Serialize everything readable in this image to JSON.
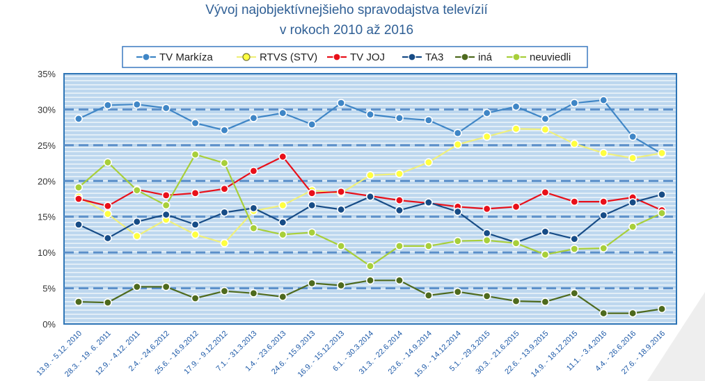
{
  "chart_data": {
    "type": "line",
    "title_line1": "Vývoj najobjektívnejšieho spravodajstva televízií",
    "title_line2": "v rokoch 2010 až 2016",
    "categories": [
      "13.9. - 5.12. 2010",
      "28.3. - 19. 6. 2011",
      "12.9. - 4.12. 2011",
      "2.4. - 24.6.2012",
      "25.6. - 16.9.2012",
      "17.9. - 9.12.2012",
      "7.1. - 31.3.2013",
      "1.4. - 23.6.2013",
      "24.6. - 15.9.2013",
      "16.9. - 15.12.2013",
      "6.1. - 30.3.2014",
      "31.3. - 22.6.2014",
      "23.6. - 14.9.2014",
      "15.9. - 14.12.2014",
      "5.1. - 29.3.2015",
      "30.3. - 21.6.2015",
      "22.6. - 13.9.2015",
      "14.9. - 18.12.2015",
      "11.1. - 3.4.2016",
      "4.4. - 26.6.2016",
      "27.6. - 18.9.2016"
    ],
    "y_ticks": [
      "0%",
      "5%",
      "10%",
      "15%",
      "20%",
      "25%",
      "30%",
      "35%"
    ],
    "ylim": [
      0,
      35
    ],
    "grid": true,
    "legend_position": "top",
    "series": [
      {
        "name": "TV Markíza",
        "color": "#3f86c6",
        "marker_fill": "#3f86c6",
        "values": [
          28.7,
          30.6,
          30.7,
          30.2,
          28.1,
          27.1,
          28.8,
          29.5,
          27.9,
          30.9,
          29.3,
          28.8,
          28.5,
          26.7,
          29.5,
          30.4,
          28.7,
          30.9,
          31.3,
          26.2,
          23.8
        ]
      },
      {
        "name": "RTVS (STV)",
        "color": "#f0f07a",
        "marker_fill": "#ffff40",
        "values": [
          17.8,
          15.4,
          12.3,
          14.6,
          12.5,
          11.3,
          15.8,
          16.6,
          18.7,
          18.3,
          20.8,
          21.0,
          22.6,
          25.1,
          26.2,
          27.3,
          27.2,
          25.2,
          23.9,
          23.2,
          23.9
        ]
      },
      {
        "name": "TV JOJ",
        "color": "#e8101a",
        "marker_fill": "#e8101a",
        "values": [
          17.5,
          16.5,
          18.8,
          18.0,
          18.3,
          18.9,
          21.4,
          23.4,
          18.3,
          18.5,
          17.9,
          17.3,
          16.9,
          16.4,
          16.1,
          16.4,
          18.4,
          17.1,
          17.1,
          17.7,
          15.9
        ]
      },
      {
        "name": "TA3",
        "color": "#174c86",
        "marker_fill": "#174c86",
        "values": [
          13.9,
          12.0,
          14.3,
          15.3,
          13.9,
          15.6,
          16.2,
          14.2,
          16.6,
          16.0,
          17.8,
          15.9,
          17.0,
          15.7,
          12.7,
          11.4,
          12.9,
          11.9,
          15.2,
          17.0,
          18.1
        ]
      },
      {
        "name": "iná",
        "color": "#4e6a1e",
        "marker_fill": "#4e6a1e",
        "values": [
          3.1,
          3.0,
          5.2,
          5.2,
          3.6,
          4.6,
          4.3,
          3.8,
          5.7,
          5.4,
          6.1,
          6.1,
          4.0,
          4.5,
          3.9,
          3.2,
          3.1,
          4.3,
          1.5,
          1.5,
          2.1
        ]
      },
      {
        "name": "neuviedli",
        "color": "#a8cf3a",
        "marker_fill": "#a8cf3a",
        "values": [
          19.1,
          22.6,
          18.7,
          16.6,
          23.7,
          22.5,
          13.4,
          12.5,
          12.8,
          10.9,
          8.1,
          10.9,
          10.9,
          11.6,
          11.7,
          11.3,
          9.7,
          10.5,
          10.6,
          13.6,
          15.5
        ]
      }
    ]
  }
}
